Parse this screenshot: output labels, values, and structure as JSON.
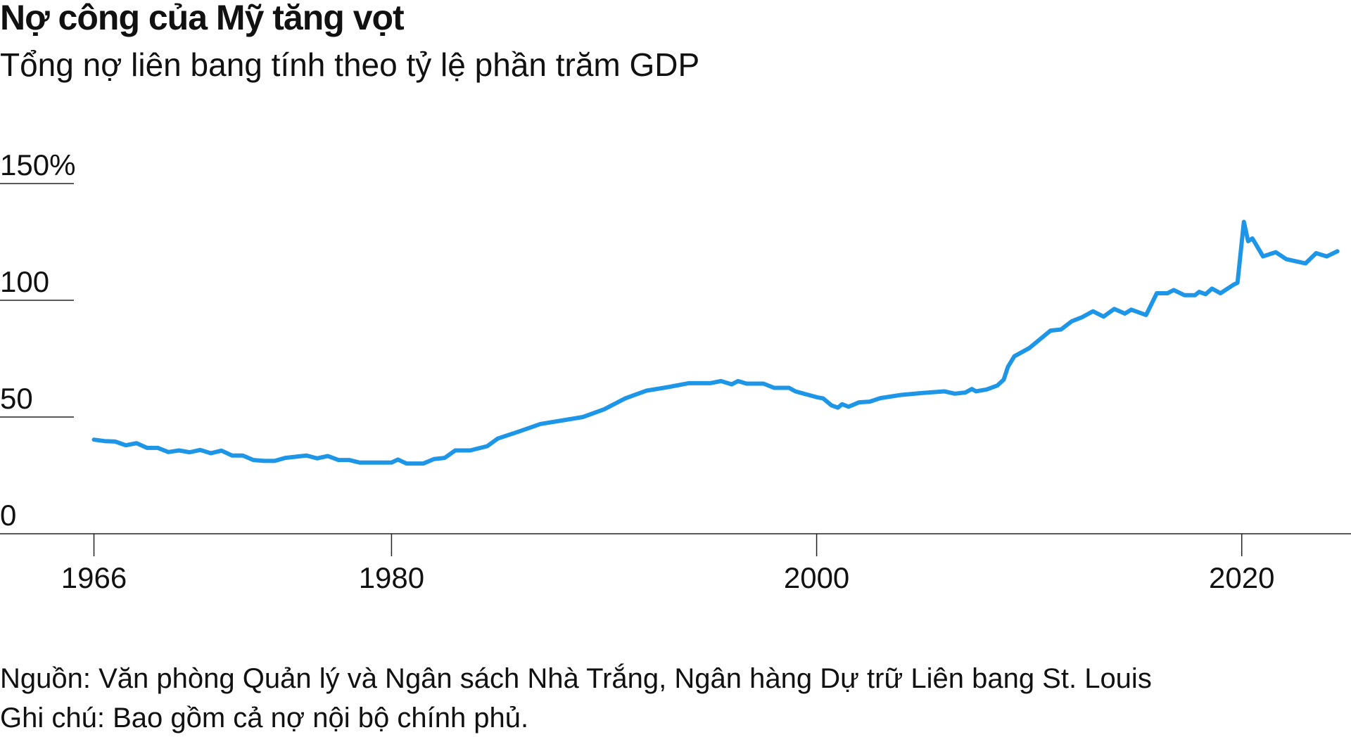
{
  "chart_data": {
    "type": "line",
    "title": "Nợ công của Mỹ tăng vọt",
    "subtitle": "Tổng nợ liên bang tính theo tỷ lệ phần trăm GDP",
    "source": "Nguồn: Văn phòng Quản lý và Ngân sách Nhà Trắng, Ngân hàng Dự trữ Liên bang St. Louis",
    "note": "Ghi chú: Bao gồm cả nợ nội bộ chính phủ.",
    "x": [
      1966,
      1966.5,
      1967,
      1967.5,
      1968,
      1968.5,
      1969,
      1969.5,
      1970,
      1970.5,
      1971,
      1971.5,
      1972,
      1972.5,
      1973,
      1973.5,
      1974,
      1974.5,
      1975,
      1976,
      1976.5,
      1977,
      1977.5,
      1978,
      1978.5,
      1979,
      1980,
      1980.3,
      1980.7,
      1981.5,
      1982,
      1982.5,
      1983,
      1983.7,
      1984.5,
      1985,
      1986,
      1987,
      1988,
      1989,
      1990,
      1991,
      1992,
      1993,
      1994,
      1995,
      1995.5,
      1996,
      1996.3,
      1996.7,
      1997.5,
      1998,
      1998.7,
      1999,
      2000,
      2000.3,
      2000.7,
      2001,
      2001.2,
      2001.5,
      2002,
      2002.5,
      2003,
      2004,
      2005,
      2006,
      2006.5,
      2007,
      2007.3,
      2007.5,
      2008,
      2008.5,
      2008.8,
      2009,
      2009.3,
      2010,
      2011,
      2011.5,
      2012,
      2012.5,
      2013,
      2013.5,
      2014,
      2014.5,
      2014.8,
      2015.5,
      2016,
      2016.5,
      2016.8,
      2017.3,
      2017.8,
      2018,
      2018.3,
      2018.6,
      2019,
      2019.6,
      2019.8,
      2020.1,
      2020.3,
      2020.5,
      2021,
      2021.6,
      2022.1,
      2023,
      2023.5,
      2024,
      2024.5
    ],
    "series": [
      {
        "name": "Nợ liên bang",
        "color": "#1e96e8",
        "values": [
          40.3,
          39.7,
          39.5,
          37.9,
          38.8,
          36.8,
          36.8,
          35,
          35.7,
          34.9,
          35.9,
          34.5,
          35.6,
          33.5,
          33.5,
          31.6,
          31.2,
          31.2,
          32.5,
          33.5,
          32.3,
          33.3,
          31.6,
          31.6,
          30.5,
          30.5,
          30.5,
          31.8,
          30.1,
          30.1,
          32,
          32.5,
          35.7,
          35.7,
          37.5,
          40.8,
          43.8,
          47,
          48.5,
          50,
          53.3,
          58,
          61.3,
          62.8,
          64.5,
          64.5,
          65.4,
          64,
          65.4,
          64.3,
          64.3,
          62.5,
          62.5,
          61,
          58.5,
          58,
          55,
          54,
          55.5,
          54.4,
          56.3,
          56.6,
          58.1,
          59.5,
          60.3,
          61,
          60,
          60.5,
          62,
          61,
          61.8,
          63.5,
          66,
          71.5,
          76,
          79.5,
          87,
          87.5,
          91,
          92.8,
          95.3,
          93,
          96.3,
          94.3,
          96,
          93.7,
          103,
          103,
          104.4,
          102.2,
          102.2,
          103.6,
          102.6,
          105,
          103,
          106.6,
          107.5,
          133.6,
          125.3,
          126.5,
          118.8,
          120.6,
          117.6,
          115.8,
          120.2,
          118.8,
          121
        ]
      }
    ],
    "xlim": [
      1961.58,
      2025.14
    ],
    "xticks": [
      1966,
      1980,
      2000,
      2020
    ],
    "ylim": [
      0,
      150
    ],
    "yticks": [
      0,
      50,
      100,
      {
        "value": 150,
        "label": "150%"
      }
    ],
    "grid": true
  }
}
